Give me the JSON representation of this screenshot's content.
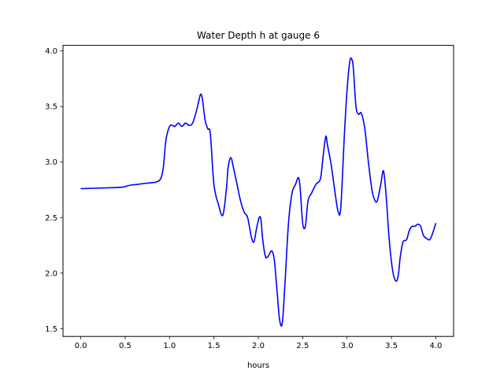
{
  "chart_data": {
    "type": "line",
    "title": "Water Depth h at gauge 6",
    "xlabel": "hours",
    "ylabel": "",
    "xlim": [
      -0.2,
      4.2
    ],
    "ylim": [
      1.43,
      4.05
    ],
    "xticks": [
      "0.0",
      "0.5",
      "1.0",
      "1.5",
      "2.0",
      "2.5",
      "3.0",
      "3.5",
      "4.0"
    ],
    "yticks": [
      "1.5",
      "2.0",
      "2.5",
      "3.0",
      "3.5",
      "4.0"
    ],
    "grid": false,
    "series": [
      {
        "color": "#0000ff",
        "x": [
          0.0,
          0.2,
          0.4,
          0.48,
          0.55,
          0.65,
          0.75,
          0.85,
          0.9,
          0.93,
          0.96,
          1.0,
          1.03,
          1.06,
          1.1,
          1.14,
          1.18,
          1.22,
          1.26,
          1.3,
          1.33,
          1.35,
          1.37,
          1.4,
          1.43,
          1.46,
          1.5,
          1.55,
          1.6,
          1.64,
          1.66,
          1.69,
          1.72,
          1.76,
          1.8,
          1.84,
          1.88,
          1.92,
          1.95,
          1.98,
          2.01,
          2.03,
          2.05,
          2.08,
          2.11,
          2.15,
          2.18,
          2.21,
          2.24,
          2.27,
          2.3,
          2.34,
          2.38,
          2.42,
          2.45,
          2.47,
          2.5,
          2.53,
          2.56,
          2.6,
          2.65,
          2.7,
          2.73,
          2.76,
          2.78,
          2.82,
          2.86,
          2.9,
          2.93,
          2.97,
          3.0,
          3.03,
          3.05,
          3.07,
          3.1,
          3.13,
          3.16,
          3.2,
          3.24,
          3.28,
          3.31,
          3.34,
          3.38,
          3.41,
          3.44,
          3.47,
          3.5,
          3.53,
          3.56,
          3.58,
          3.6,
          3.63,
          3.67,
          3.7,
          3.73,
          3.76,
          3.8,
          3.83,
          3.86,
          3.9,
          3.93,
          3.96,
          4.0
        ],
        "y": [
          2.76,
          2.765,
          2.77,
          2.775,
          2.79,
          2.8,
          2.81,
          2.82,
          2.85,
          2.95,
          3.2,
          3.32,
          3.33,
          3.32,
          3.35,
          3.32,
          3.35,
          3.33,
          3.35,
          3.45,
          3.55,
          3.61,
          3.57,
          3.38,
          3.3,
          3.25,
          2.8,
          2.62,
          2.52,
          2.75,
          2.95,
          3.04,
          2.95,
          2.8,
          2.65,
          2.55,
          2.5,
          2.33,
          2.28,
          2.4,
          2.5,
          2.48,
          2.3,
          2.15,
          2.15,
          2.2,
          2.12,
          1.85,
          1.58,
          1.55,
          1.9,
          2.45,
          2.72,
          2.8,
          2.86,
          2.78,
          2.45,
          2.42,
          2.65,
          2.72,
          2.8,
          2.85,
          3.05,
          3.23,
          3.15,
          2.98,
          2.75,
          2.55,
          2.6,
          3.25,
          3.65,
          3.9,
          3.93,
          3.85,
          3.5,
          3.43,
          3.44,
          3.3,
          3.0,
          2.75,
          2.66,
          2.65,
          2.8,
          2.92,
          2.7,
          2.35,
          2.1,
          1.96,
          1.93,
          2.0,
          2.15,
          2.28,
          2.3,
          2.38,
          2.42,
          2.42,
          2.44,
          2.42,
          2.34,
          2.31,
          2.3,
          2.35,
          2.45
        ]
      }
    ]
  }
}
